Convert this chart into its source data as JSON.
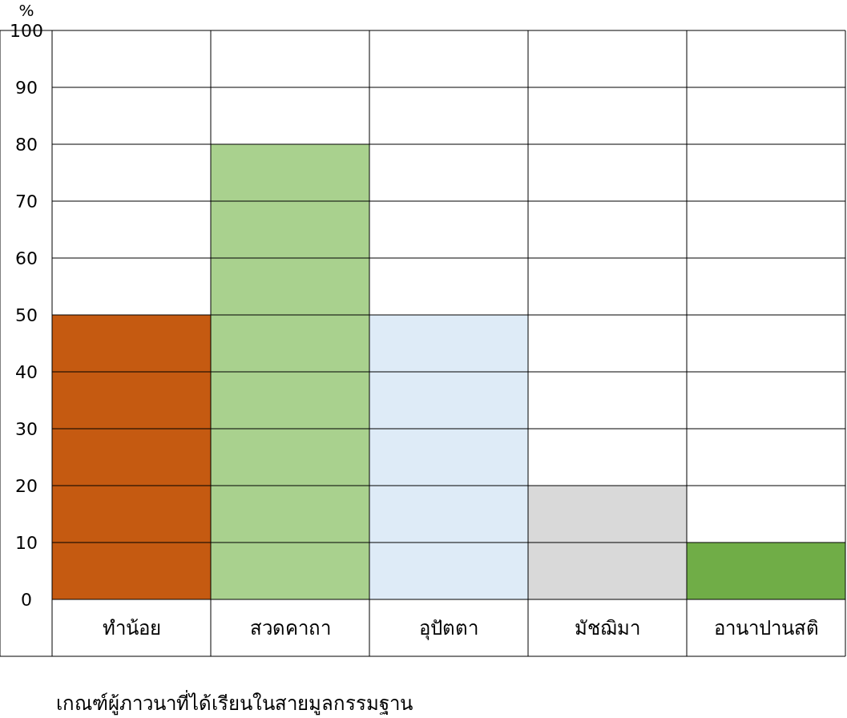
{
  "chart_data": {
    "type": "bar",
    "ylabel": "%",
    "categories": [
      "ทำน้อย",
      "สวดคาถา",
      "อุปัตตา",
      "มัชฌิมา",
      "อานาปานสติ"
    ],
    "values": [
      50,
      80,
      50,
      20,
      10
    ],
    "colors": [
      "#c55a11",
      "#a9d18e",
      "#deebf7",
      "#d9d9d9",
      "#70ad47"
    ],
    "ylim": [
      0,
      100
    ],
    "yticks": [
      0,
      10,
      20,
      30,
      40,
      50,
      60,
      70,
      80,
      90,
      100
    ],
    "grid": true,
    "annotations": [
      "เกณฑ์ผู้ภาวนาที่ได้เรียนในสายมูลกรรมฐาน"
    ]
  }
}
